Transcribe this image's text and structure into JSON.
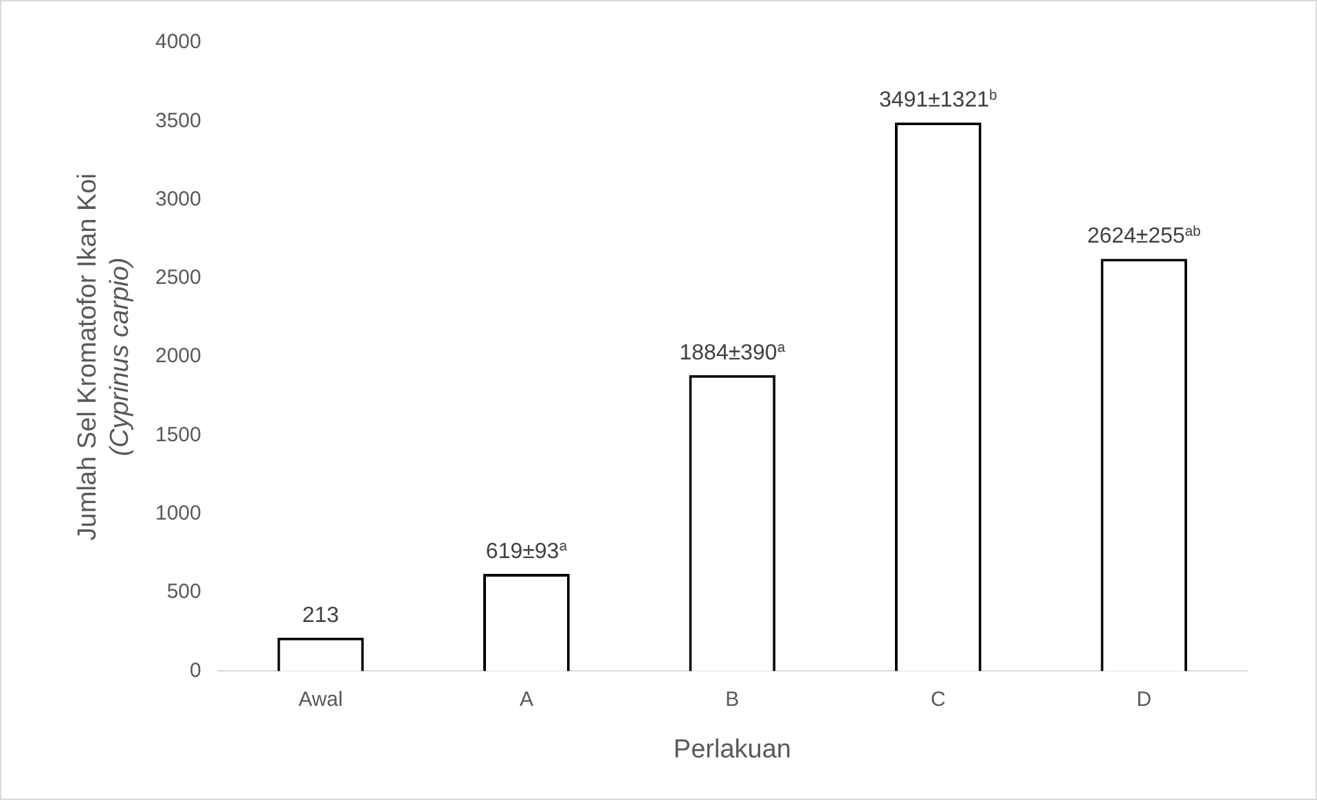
{
  "chart_data": {
    "type": "bar",
    "xlabel": "Perlakuan",
    "ylabel": "Jumlah Sel Kromatofor Ikan Koi\n(Cyprinus carpio)",
    "categories": [
      "Awal",
      "A",
      "B",
      "C",
      "D"
    ],
    "values": [
      213,
      619,
      1884,
      3491,
      2624
    ],
    "value_labels": [
      "213",
      "619±93$^{a}$",
      "1884±390$^{a}$",
      "3491±1321$^{b}$",
      "2624±255$^{ab}$"
    ],
    "color": "#ffffff",
    "ylim": [
      0,
      4000
    ],
    "yticks": [
      0,
      500,
      1000,
      1500,
      2000,
      2500,
      3000,
      3500,
      4000
    ],
    "grid": false,
    "legend": false
  }
}
